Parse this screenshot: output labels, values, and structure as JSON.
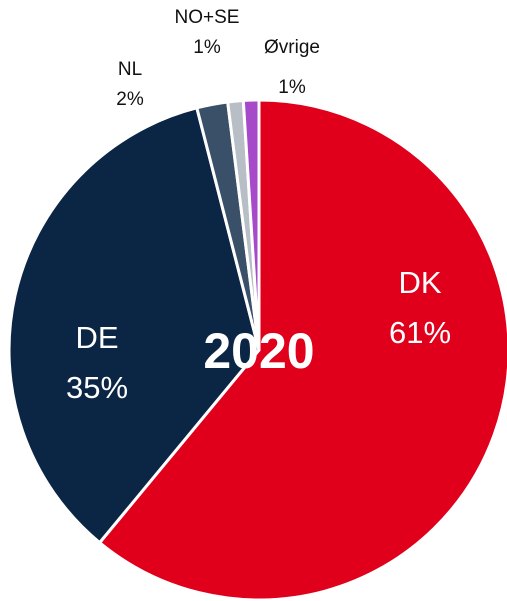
{
  "chart_data": {
    "type": "pie",
    "title": "2020",
    "categories": [
      "DK",
      "DE",
      "NL",
      "NO+SE",
      "Øvrige"
    ],
    "values": [
      61,
      35,
      2,
      1,
      1
    ],
    "value_labels": [
      "61%",
      "35%",
      "2%",
      "1%",
      "1%"
    ],
    "colors": [
      "#e0001b",
      "#0b2545",
      "#3a4f68",
      "#b8bec6",
      "#a64ac9"
    ]
  }
}
